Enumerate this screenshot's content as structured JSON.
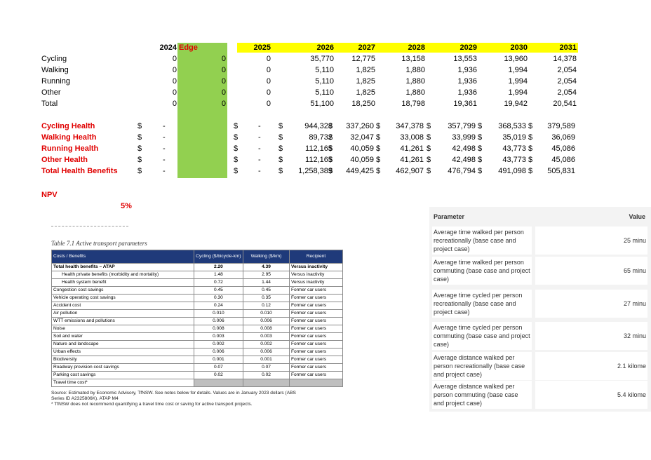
{
  "sheet": {
    "year_header": {
      "y2024": "2024",
      "edge": "Edge",
      "y2025": "2025",
      "years": [
        "2026",
        "2027",
        "2028",
        "2029",
        "2030",
        "2031"
      ]
    },
    "trips": [
      {
        "label": "Cycling",
        "v2024": "0",
        "edge": "0",
        "v2025": "0",
        "vals": [
          "35,770",
          "12,775",
          "13,158",
          "13,553",
          "13,960",
          "14,378"
        ]
      },
      {
        "label": "Walking",
        "v2024": "0",
        "edge": "0",
        "v2025": "0",
        "vals": [
          "5,110",
          "1,825",
          "1,880",
          "1,936",
          "1,994",
          "2,054"
        ]
      },
      {
        "label": "Running",
        "v2024": "0",
        "edge": "0",
        "v2025": "0",
        "vals": [
          "5,110",
          "1,825",
          "1,880",
          "1,936",
          "1,994",
          "2,054"
        ]
      },
      {
        "label": "Other",
        "v2024": "0",
        "edge": "0",
        "v2025": "0",
        "vals": [
          "5,110",
          "1,825",
          "1,880",
          "1,936",
          "1,994",
          "2,054"
        ]
      },
      {
        "label": "Total",
        "v2024": "0",
        "edge": "0",
        "v2025": "0",
        "vals": [
          "51,100",
          "18,250",
          "18,798",
          "19,361",
          "19,942",
          "20,541"
        ]
      }
    ],
    "currency": "$",
    "dash": "-",
    "health": [
      {
        "label": "Cycling Health",
        "vals": [
          "944,328",
          "337,260",
          "347,378",
          "357,799",
          "368,533",
          "379,589"
        ]
      },
      {
        "label": "Walking Health",
        "vals": [
          "89,732",
          "32,047",
          "33,008",
          "33,999",
          "35,019",
          "36,069"
        ]
      },
      {
        "label": "Running Health",
        "vals": [
          "112,165",
          "40,059",
          "41,261",
          "42,498",
          "43,773",
          "45,086"
        ]
      },
      {
        "label": "Other Health",
        "vals": [
          "112,165",
          "40,059",
          "41,261",
          "42,498",
          "43,773",
          "45,086"
        ]
      },
      {
        "label": "Total Health Benefits",
        "vals": [
          "1,258,389",
          "449,425",
          "462,907",
          "476,794",
          "491,098",
          "505,831"
        ]
      }
    ],
    "npv_label": "NPV",
    "rate": "5%"
  },
  "table71": {
    "caption": "Table 7.1 Active transport parameters",
    "headers": [
      "Costs / Benefits",
      "Cycling ($/bicycle-km)",
      "Walking ($/km)",
      "Recipient"
    ],
    "rows": [
      {
        "label": "Total health benefits – ATAP",
        "c": "2.20",
        "w": "4.39",
        "r": "Versus inactivity",
        "bold": true
      },
      {
        "label": "Health private benefits (morbidity and mortality)",
        "c": "1.48",
        "w": "2.95",
        "r": "Versus inactivity",
        "indent": true
      },
      {
        "label": "Health system benefit",
        "c": "0.72",
        "w": "1.44",
        "r": "Versus inactivity",
        "indent": true
      },
      {
        "label": "Congestion cost savings",
        "c": "0.45",
        "w": "0.45",
        "r": "Former car users"
      },
      {
        "label": "Vehicle operating cost savings",
        "c": "0.30",
        "w": "0.35",
        "r": "Former car users"
      },
      {
        "label": "Accident cost",
        "c": "0.24",
        "w": "0.12",
        "r": "Former car users"
      },
      {
        "label": "Air pollution",
        "c": "0.010",
        "w": "0.010",
        "r": "Former car users"
      },
      {
        "label": "WTT emissions and pollutions",
        "c": "0.006",
        "w": "0.006",
        "r": "Former car users"
      },
      {
        "label": "Noise",
        "c": "0.008",
        "w": "0.008",
        "r": "Former car users"
      },
      {
        "label": "Soil and water",
        "c": "0.003",
        "w": "0.003",
        "r": "Former car users"
      },
      {
        "label": "Nature and landscape",
        "c": "0.002",
        "w": "0.002",
        "r": "Former car users"
      },
      {
        "label": "Urban effects",
        "c": "0.006",
        "w": "0.006",
        "r": "Former car users"
      },
      {
        "label": "Biodiversity",
        "c": "0.001",
        "w": "0.001",
        "r": "Former car users"
      },
      {
        "label": "Roadway provision cost savings",
        "c": "0.07",
        "w": "0.07",
        "r": "Former car users"
      },
      {
        "label": "Parking cost savings",
        "c": "0.02",
        "w": "0.02",
        "r": "Former car users"
      },
      {
        "label": "Travel time cost*",
        "c": "",
        "w": "",
        "r": "",
        "grey": true
      }
    ],
    "source": "Source: Estimated by Economic Advisory, TfNSW. See notes below for details. Values are in January 2023 dollars (ABS",
    "source2": "Series ID A2325806K). ATAP M4",
    "footnote": "* TfNSW does not recommend quantifying a travel time cost or saving for active transport projects."
  },
  "params": {
    "header_param": "Parameter",
    "header_value": "Value",
    "rows": [
      {
        "p": "Average time walked per person recreationally (base case and project case)",
        "v": "25 minu"
      },
      {
        "p": "Average time walked per person commuting (base case and project case)",
        "v": "65 minu"
      },
      {
        "p": "Average time cycled per person recreationally (base case and project case)",
        "v": "27 minu"
      },
      {
        "p": "Average time cycled per person commuting (base case and project case)",
        "v": "32 minu"
      },
      {
        "p": "Average distance walked per person recreationally (base case and project case)",
        "v": "2.1 kilome"
      },
      {
        "p": "Average distance walked per person commuting (base case and project case)",
        "v": "5.4 kilome"
      }
    ]
  }
}
